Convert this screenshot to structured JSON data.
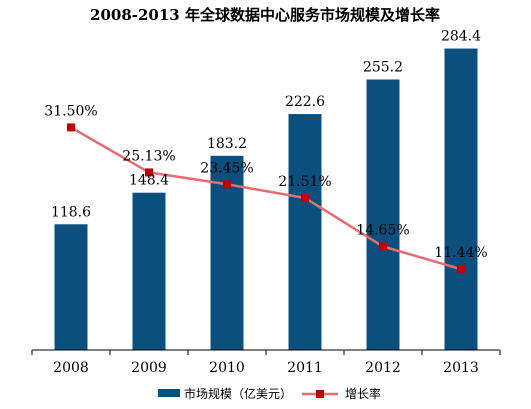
{
  "chart_data": {
    "type": "bar",
    "title": "2008-2013 年全球数据中心服务市场规模及增长率",
    "categories": [
      "2008",
      "2009",
      "2010",
      "2011",
      "2012",
      "2013"
    ],
    "ylim": [
      0,
      300
    ],
    "y2lim": [
      0,
      45
    ],
    "grid": false,
    "legend_position": "bottom",
    "series": [
      {
        "name": "市场规模（亿美元）",
        "type": "bar",
        "values": [
          118.6,
          148.4,
          183.2,
          222.6,
          255.2,
          284.4
        ],
        "labels": [
          "118.6",
          "148.4",
          "183.2",
          "222.6",
          "255.2",
          "284.4"
        ],
        "color": "#0b4f7f"
      },
      {
        "name": "增长率",
        "type": "line",
        "values": [
          31.5,
          25.13,
          23.45,
          21.51,
          14.65,
          11.44
        ],
        "labels": [
          "31.50%",
          "25.13%",
          "23.45%",
          "21.51%",
          "14.65%",
          "11.44%"
        ],
        "color": "#e86b71",
        "marker_color": "#c00000"
      }
    ]
  }
}
